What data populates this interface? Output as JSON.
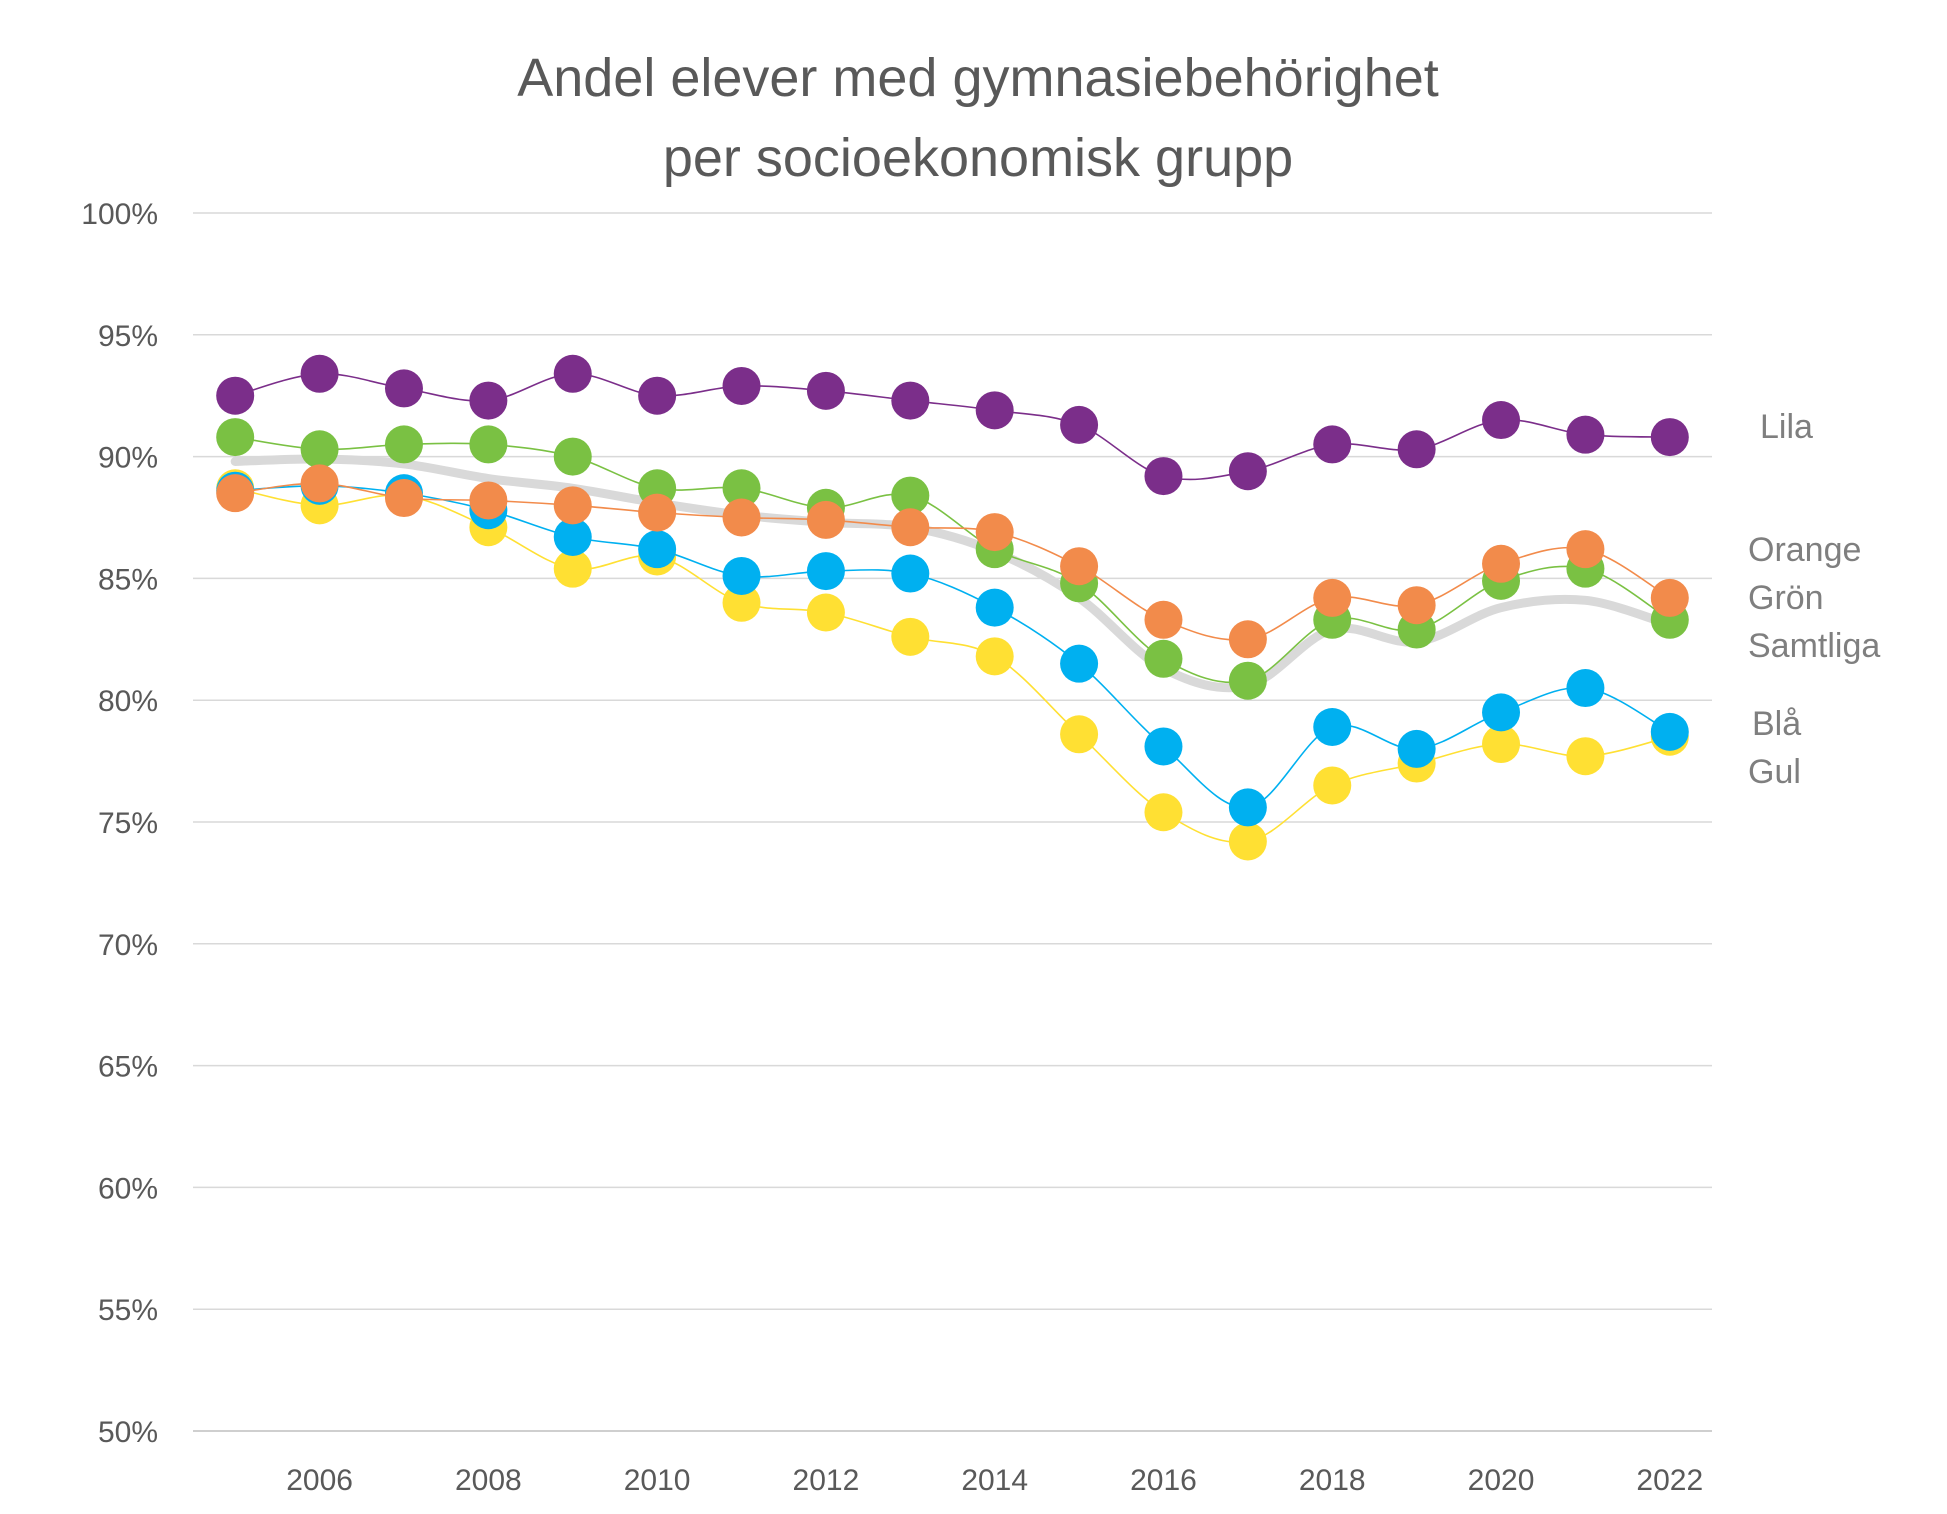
{
  "chart_data": {
    "type": "line",
    "title": [
      "Andel elever med gymnasiebehörighet",
      "per socioekonomisk grupp"
    ],
    "xlabel": "",
    "ylabel": "",
    "x": [
      2005,
      2006,
      2007,
      2008,
      2009,
      2010,
      2011,
      2012,
      2013,
      2014,
      2015,
      2016,
      2017,
      2018,
      2019,
      2020,
      2021,
      2022
    ],
    "x_tick_labels": [
      "2006",
      "2008",
      "2010",
      "2012",
      "2014",
      "2016",
      "2018",
      "2020",
      "2022"
    ],
    "x_tick_values": [
      2006,
      2008,
      2010,
      2012,
      2014,
      2016,
      2018,
      2020,
      2022
    ],
    "y_tick_labels": [
      "100%",
      "95%",
      "90%",
      "85%",
      "80%",
      "75%",
      "70%",
      "65%",
      "60%",
      "55%",
      "50%"
    ],
    "y_tick_values": [
      100,
      95,
      90,
      85,
      80,
      75,
      70,
      65,
      60,
      55,
      50
    ],
    "ylim": [
      50,
      100
    ],
    "xlim": [
      2004.5,
      2022.5
    ],
    "grid": "horizontal",
    "legend": "labels at right end of lines",
    "series": [
      {
        "name": "Samtliga",
        "key": "samtliga",
        "color": "#d9d9d9",
        "markers": false,
        "values": [
          89.8,
          89.9,
          89.7,
          89.1,
          88.7,
          88.1,
          87.6,
          87.3,
          87.1,
          86.1,
          84.2,
          81.3,
          80.6,
          82.9,
          82.4,
          83.8,
          84.1,
          83.1
        ]
      },
      {
        "name": "Gul",
        "key": "gul",
        "color": "#ffe033",
        "markers": true,
        "values": [
          88.7,
          88.0,
          88.4,
          87.1,
          85.4,
          85.9,
          84.0,
          83.6,
          82.6,
          81.8,
          78.6,
          75.4,
          74.2,
          76.5,
          77.4,
          78.2,
          77.7,
          78.5
        ]
      },
      {
        "name": "Blå",
        "key": "bla",
        "color": "#00b0f0",
        "markers": true,
        "values": [
          88.6,
          88.8,
          88.5,
          87.8,
          86.7,
          86.2,
          85.1,
          85.3,
          85.2,
          83.8,
          81.5,
          78.1,
          75.6,
          78.9,
          78.0,
          79.5,
          80.5,
          78.7
        ]
      },
      {
        "name": "Grön",
        "key": "gron",
        "color": "#7ac143",
        "markers": true,
        "values": [
          90.8,
          90.3,
          90.5,
          90.5,
          90.0,
          88.7,
          88.7,
          87.9,
          88.4,
          86.2,
          84.8,
          81.7,
          80.8,
          83.3,
          82.9,
          84.9,
          85.4,
          83.3
        ]
      },
      {
        "name": "Orange",
        "key": "orange",
        "color": "#f28b4b",
        "markers": true,
        "values": [
          88.5,
          88.9,
          88.3,
          88.2,
          88.0,
          87.7,
          87.5,
          87.4,
          87.1,
          86.9,
          85.5,
          83.3,
          82.5,
          84.2,
          83.9,
          85.6,
          86.2,
          84.2
        ]
      },
      {
        "name": "Lila",
        "key": "lila",
        "color": "#7b2e8a",
        "markers": true,
        "values": [
          92.5,
          93.4,
          92.8,
          92.3,
          93.4,
          92.5,
          92.9,
          92.7,
          92.3,
          91.9,
          91.3,
          89.2,
          89.4,
          90.5,
          90.3,
          91.5,
          90.9,
          90.8
        ]
      }
    ]
  }
}
